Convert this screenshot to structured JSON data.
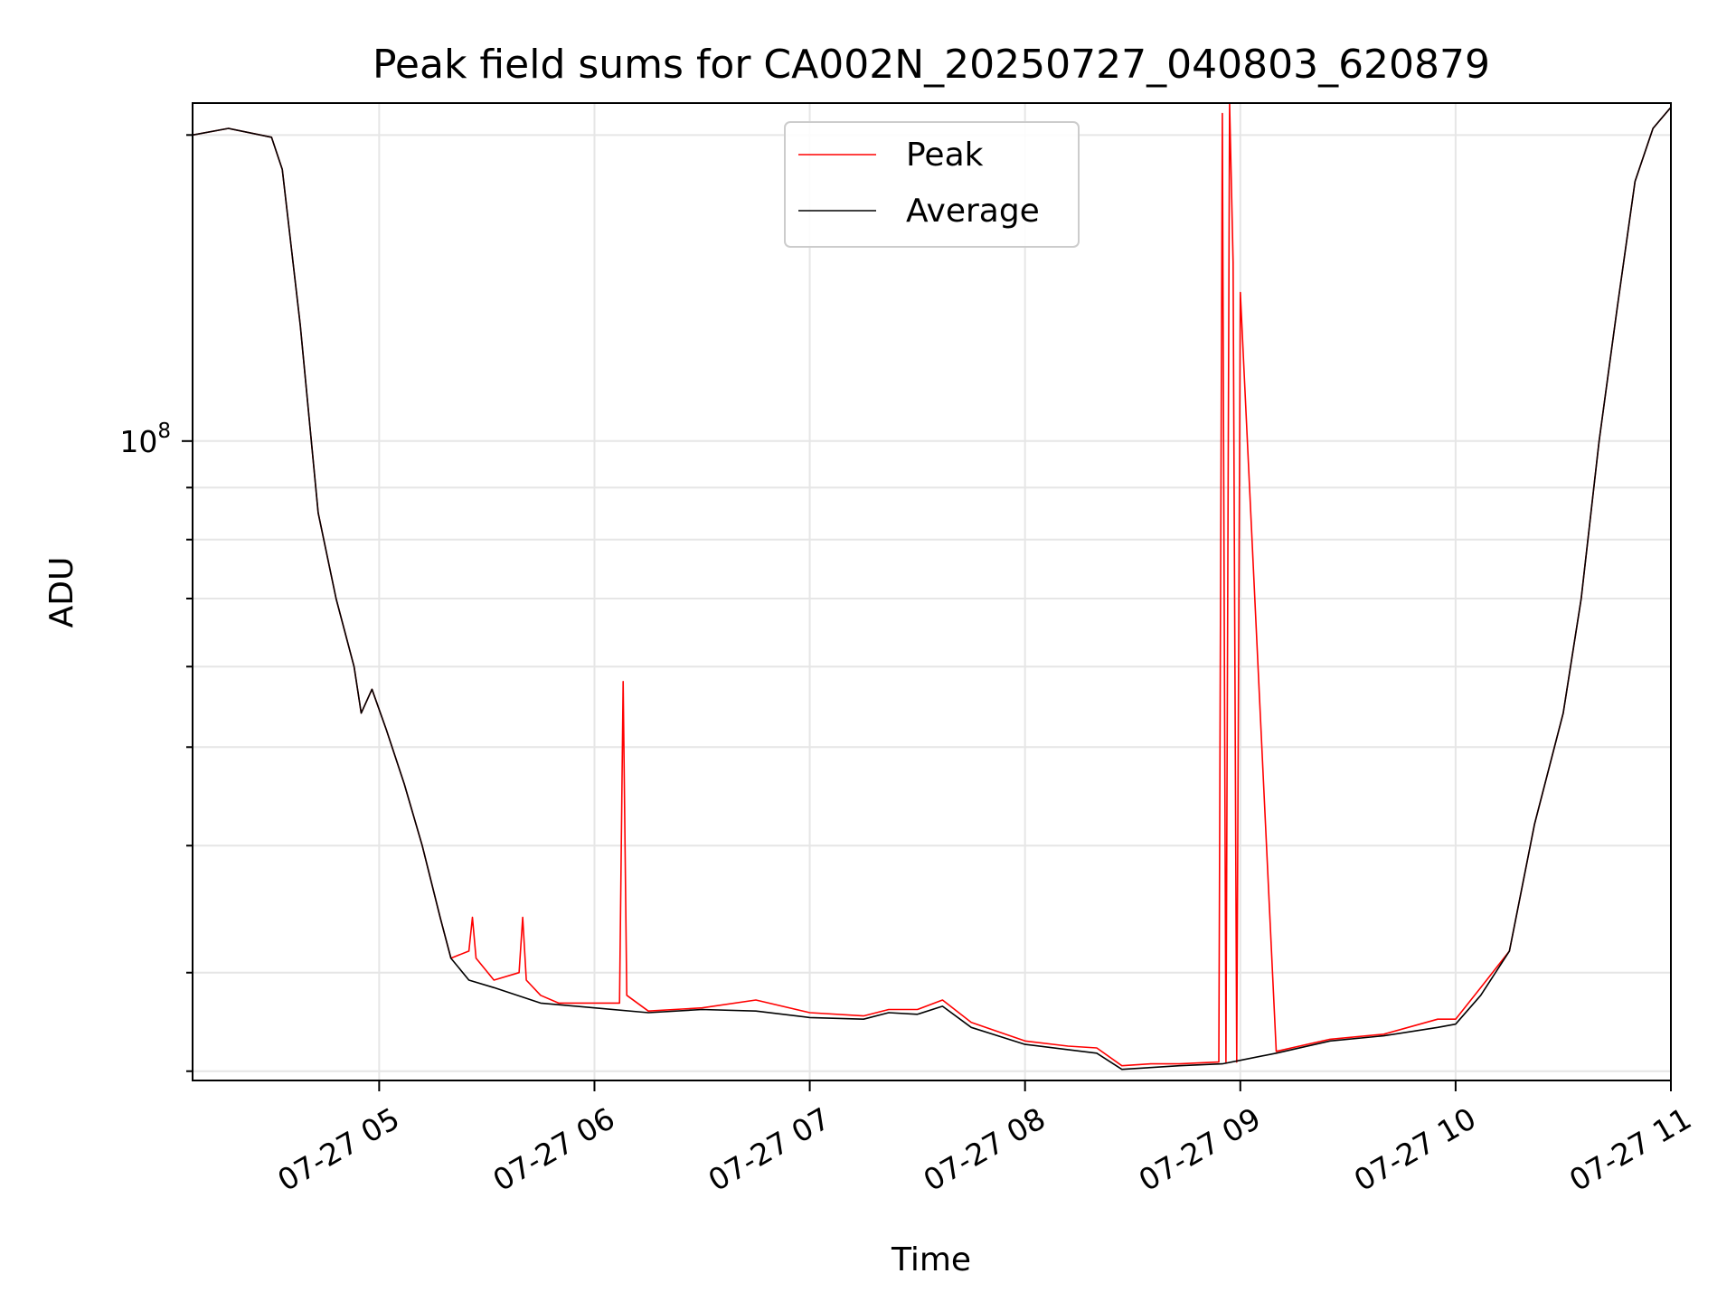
{
  "chart_data": {
    "type": "line",
    "title": "Peak field sums for CA002N_20250727_040803_620879",
    "xlabel": "Time",
    "ylabel": "ADU",
    "yscale": "log",
    "ylim": [
      23500000.0,
      215000000.0
    ],
    "xlim": [
      "2025-07-27 04:08",
      "2025-07-27 11:00"
    ],
    "x_ticks": [
      {
        "time": "2025-07-27 05:00",
        "label": "07-27 05"
      },
      {
        "time": "2025-07-27 06:00",
        "label": "07-27 06"
      },
      {
        "time": "2025-07-27 07:00",
        "label": "07-27 07"
      },
      {
        "time": "2025-07-27 08:00",
        "label": "07-27 08"
      },
      {
        "time": "2025-07-27 09:00",
        "label": "07-27 09"
      },
      {
        "time": "2025-07-27 10:00",
        "label": "07-27 10"
      },
      {
        "time": "2025-07-27 11:00",
        "label": "07-27 11"
      }
    ],
    "y_ticks": [
      {
        "value": 100000000,
        "label": "10",
        "exponent": "8"
      }
    ],
    "y_minor_ticks": [
      24000000,
      30000000,
      40000000,
      50000000,
      60000000,
      70000000,
      80000000,
      90000000,
      200000000
    ],
    "grid": true,
    "legend_position": "top-center",
    "series": [
      {
        "name": "Peak",
        "color": "#ff0000",
        "x": [
          "2025-07-27 04:08",
          "2025-07-27 04:18",
          "2025-07-27 04:30",
          "2025-07-27 04:33",
          "2025-07-27 04:38",
          "2025-07-27 04:43",
          "2025-07-27 04:48",
          "2025-07-27 04:53",
          "2025-07-27 04:55",
          "2025-07-27 04:58",
          "2025-07-27 05:02",
          "2025-07-27 05:07",
          "2025-07-27 05:12",
          "2025-07-27 05:17",
          "2025-07-27 05:20",
          "2025-07-27 05:25",
          "2025-07-27 05:26",
          "2025-07-27 05:27",
          "2025-07-27 05:32",
          "2025-07-27 05:39",
          "2025-07-27 05:40",
          "2025-07-27 05:41",
          "2025-07-27 05:45",
          "2025-07-27 05:50",
          "2025-07-27 05:55",
          "2025-07-27 06:07",
          "2025-07-27 06:08",
          "2025-07-27 06:09",
          "2025-07-27 06:15",
          "2025-07-27 06:30",
          "2025-07-27 06:45",
          "2025-07-27 07:00",
          "2025-07-27 07:15",
          "2025-07-27 07:22",
          "2025-07-27 07:30",
          "2025-07-27 07:37",
          "2025-07-27 07:45",
          "2025-07-27 08:00",
          "2025-07-27 08:12",
          "2025-07-27 08:20",
          "2025-07-27 08:27",
          "2025-07-27 08:35",
          "2025-07-27 08:43",
          "2025-07-27 08:54",
          "2025-07-27 08:55",
          "2025-07-27 08:56",
          "2025-07-27 08:57",
          "2025-07-27 08:58",
          "2025-07-27 08:59",
          "2025-07-27 09:00",
          "2025-07-27 09:10",
          "2025-07-27 09:25",
          "2025-07-27 09:40",
          "2025-07-27 09:55",
          "2025-07-27 10:00",
          "2025-07-27 10:07",
          "2025-07-27 10:15",
          "2025-07-27 10:22",
          "2025-07-27 10:30",
          "2025-07-27 10:35",
          "2025-07-27 10:40",
          "2025-07-27 10:45",
          "2025-07-27 10:50",
          "2025-07-27 10:55",
          "2025-07-27 11:00"
        ],
        "y": [
          200000000,
          203000000,
          199000000,
          185000000,
          130000000,
          85000000,
          70000000,
          60000000,
          54000000,
          57000000,
          52000000,
          46000000,
          40000000,
          34000000,
          31000000,
          31500000,
          34000000,
          31000000,
          29500000,
          30000000,
          34000000,
          29500000,
          28500000,
          28000000,
          28000000,
          28000000,
          58000000,
          28500000,
          27500000,
          27700000,
          28200000,
          27400000,
          27200000,
          27600000,
          27600000,
          28200000,
          26800000,
          25700000,
          25400000,
          25300000,
          24300000,
          24400000,
          24400000,
          24500000,
          210000000,
          24500000,
          215000000,
          150000000,
          24500000,
          140000000,
          25100000,
          25800000,
          26100000,
          27000000,
          27000000,
          29000000,
          31500000,
          42000000,
          54000000,
          70000000,
          100000000,
          135000000,
          180000000,
          203000000,
          213000000
        ]
      },
      {
        "name": "Average",
        "color": "#000000",
        "x": [
          "2025-07-27 04:08",
          "2025-07-27 04:18",
          "2025-07-27 04:30",
          "2025-07-27 04:33",
          "2025-07-27 04:38",
          "2025-07-27 04:43",
          "2025-07-27 04:48",
          "2025-07-27 04:53",
          "2025-07-27 04:55",
          "2025-07-27 04:58",
          "2025-07-27 05:02",
          "2025-07-27 05:07",
          "2025-07-27 05:12",
          "2025-07-27 05:17",
          "2025-07-27 05:20",
          "2025-07-27 05:25",
          "2025-07-27 05:32",
          "2025-07-27 05:45",
          "2025-07-27 06:00",
          "2025-07-27 06:15",
          "2025-07-27 06:30",
          "2025-07-27 06:45",
          "2025-07-27 07:00",
          "2025-07-27 07:15",
          "2025-07-27 07:22",
          "2025-07-27 07:30",
          "2025-07-27 07:37",
          "2025-07-27 07:45",
          "2025-07-27 08:00",
          "2025-07-27 08:12",
          "2025-07-27 08:20",
          "2025-07-27 08:27",
          "2025-07-27 08:35",
          "2025-07-27 08:43",
          "2025-07-27 08:55",
          "2025-07-27 09:00",
          "2025-07-27 09:10",
          "2025-07-27 09:25",
          "2025-07-27 09:40",
          "2025-07-27 09:55",
          "2025-07-27 10:00",
          "2025-07-27 10:07",
          "2025-07-27 10:15",
          "2025-07-27 10:22",
          "2025-07-27 10:30",
          "2025-07-27 10:35",
          "2025-07-27 10:40",
          "2025-07-27 10:45",
          "2025-07-27 10:50",
          "2025-07-27 10:55",
          "2025-07-27 11:00"
        ],
        "y": [
          200000000,
          203000000,
          199000000,
          185000000,
          130000000,
          85000000,
          70000000,
          60000000,
          54000000,
          57000000,
          52000000,
          46000000,
          40000000,
          34000000,
          31000000,
          29500000,
          29000000,
          28000000,
          27700000,
          27400000,
          27600000,
          27500000,
          27100000,
          27000000,
          27400000,
          27300000,
          27800000,
          26500000,
          25500000,
          25200000,
          25000000,
          24100000,
          24200000,
          24300000,
          24400000,
          24600000,
          25000000,
          25700000,
          26000000,
          26500000,
          26700000,
          28500000,
          31500000,
          42000000,
          54000000,
          70000000,
          100000000,
          135000000,
          180000000,
          203000000,
          213000000
        ]
      }
    ]
  }
}
